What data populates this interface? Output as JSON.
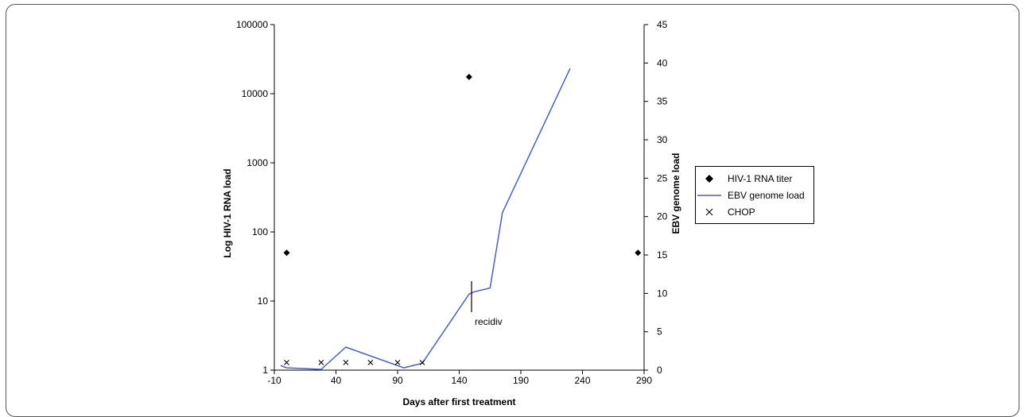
{
  "chart_data": {
    "type": "scatter",
    "title": "",
    "xlabel": "Days after first treatment",
    "ylabel_left": "Log HIV-1 RNA load",
    "ylabel_right": "EBV genome load",
    "x_range": [
      -10,
      290
    ],
    "x_ticks": [
      -10,
      40,
      90,
      140,
      190,
      240,
      290
    ],
    "y_left_scale": "log",
    "y_left_range": [
      1,
      100000
    ],
    "y_left_ticks": [
      1,
      10,
      100,
      1000,
      10000,
      100000
    ],
    "y_right_range": [
      0,
      45
    ],
    "y_right_ticks": [
      0,
      5,
      10,
      15,
      20,
      25,
      30,
      35,
      40,
      45
    ],
    "grid": false,
    "legend_position": "right",
    "series": [
      {
        "name": "HIV-1 RNA titer",
        "kind": "marker-diamond",
        "axis": "left",
        "color": "#000000",
        "points": [
          [
            0,
            50
          ],
          [
            148,
            17500
          ],
          [
            285,
            50
          ]
        ]
      },
      {
        "name": "EBV genome load",
        "kind": "line",
        "axis": "right",
        "color": "#4a5fbf",
        "points": [
          [
            -5,
            0.6
          ],
          [
            0,
            0.3
          ],
          [
            15,
            0.2
          ],
          [
            28,
            0.1
          ],
          [
            48,
            3.0
          ],
          [
            95,
            0.3
          ],
          [
            110,
            0.9
          ],
          [
            148,
            9.9
          ],
          [
            152,
            10.2
          ],
          [
            165,
            10.7
          ],
          [
            175,
            20.5
          ],
          [
            230,
            39.3
          ]
        ]
      },
      {
        "name": "CHOP",
        "kind": "marker-x",
        "axis": "right",
        "color": "#000000",
        "points": [
          [
            0,
            1.0
          ],
          [
            28,
            1.0
          ],
          [
            48,
            1.0
          ],
          [
            68,
            1.0
          ],
          [
            90,
            1.0
          ],
          [
            110,
            1.0
          ]
        ]
      }
    ],
    "annotations": [
      {
        "text": "recidiv",
        "x": 150
      }
    ]
  }
}
